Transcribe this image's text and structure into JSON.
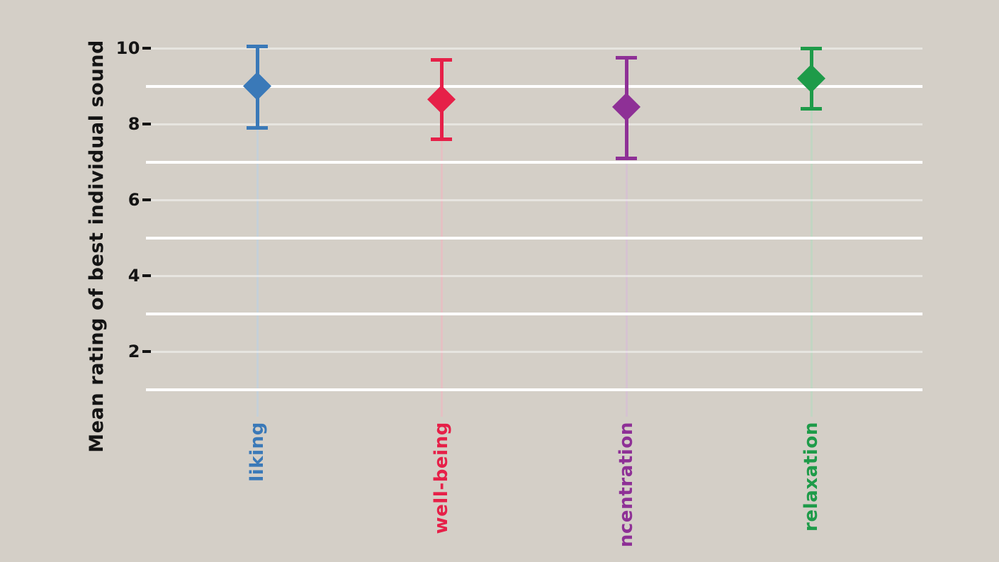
{
  "chart_data": {
    "type": "scatter",
    "subtype": "point-estimates-with-error-bars",
    "title": "",
    "xlabel": "",
    "ylabel": "Mean rating of best individual sound",
    "ylim": [
      0.3,
      10.6
    ],
    "yticks": [
      10,
      8,
      6,
      4,
      2
    ],
    "gridlines_faint_at": [
      10,
      8,
      6,
      4,
      2
    ],
    "gridlines_bright_at": [
      9,
      7,
      5,
      3,
      1
    ],
    "grid": "horizontal-only",
    "legend_position": "none",
    "marker": "diamond",
    "categories": [
      "liking",
      "well-being",
      "ncentration",
      "relaxation"
    ],
    "series": [
      {
        "label": "liking",
        "color": "#3a79b8",
        "mean": 9.0,
        "upper": 10.05,
        "lower": 7.9
      },
      {
        "label": "well-being",
        "color": "#e62048",
        "mean": 8.65,
        "upper": 9.7,
        "lower": 7.6
      },
      {
        "label": "ncentration",
        "color": "#8e3096",
        "mean": 8.45,
        "upper": 9.75,
        "lower": 7.1
      },
      {
        "label": "relaxation",
        "color": "#1e9b49",
        "mean": 9.2,
        "upper": 10.0,
        "lower": 8.4
      }
    ],
    "colors": {
      "background": "#d4cfc7",
      "gridline": "#ffffff",
      "text": "#141414"
    }
  }
}
